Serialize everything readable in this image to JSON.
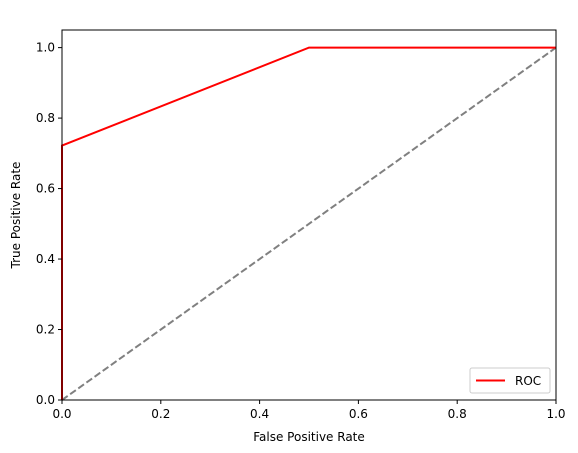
{
  "chart_data": {
    "type": "line",
    "title": "",
    "xlabel": "False Positive Rate",
    "ylabel": "True Positive Rate",
    "xlim": [
      0.0,
      1.0
    ],
    "ylim": [
      0.0,
      1.05
    ],
    "xticks": [
      0.0,
      0.2,
      0.4,
      0.6,
      0.8,
      1.0
    ],
    "yticks": [
      0.0,
      0.2,
      0.4,
      0.6,
      0.8,
      1.0
    ],
    "xtick_labels": [
      "0.0",
      "0.2",
      "0.4",
      "0.6",
      "0.8",
      "1.0"
    ],
    "ytick_labels": [
      "0.0",
      "0.2",
      "0.4",
      "0.6",
      "0.8",
      "1.0"
    ],
    "grid": false,
    "legend_position": "lower-right",
    "series": [
      {
        "name": "ROC",
        "color": "#ff0000",
        "line_style": "solid",
        "x": [
          0.0,
          0.0,
          0.5,
          1.0
        ],
        "y": [
          0.0,
          0.722,
          1.0,
          1.0
        ]
      },
      {
        "color": "#808080",
        "line_style": "dashed",
        "x": [
          0.0,
          1.0
        ],
        "y": [
          0.0,
          1.0
        ]
      }
    ]
  }
}
